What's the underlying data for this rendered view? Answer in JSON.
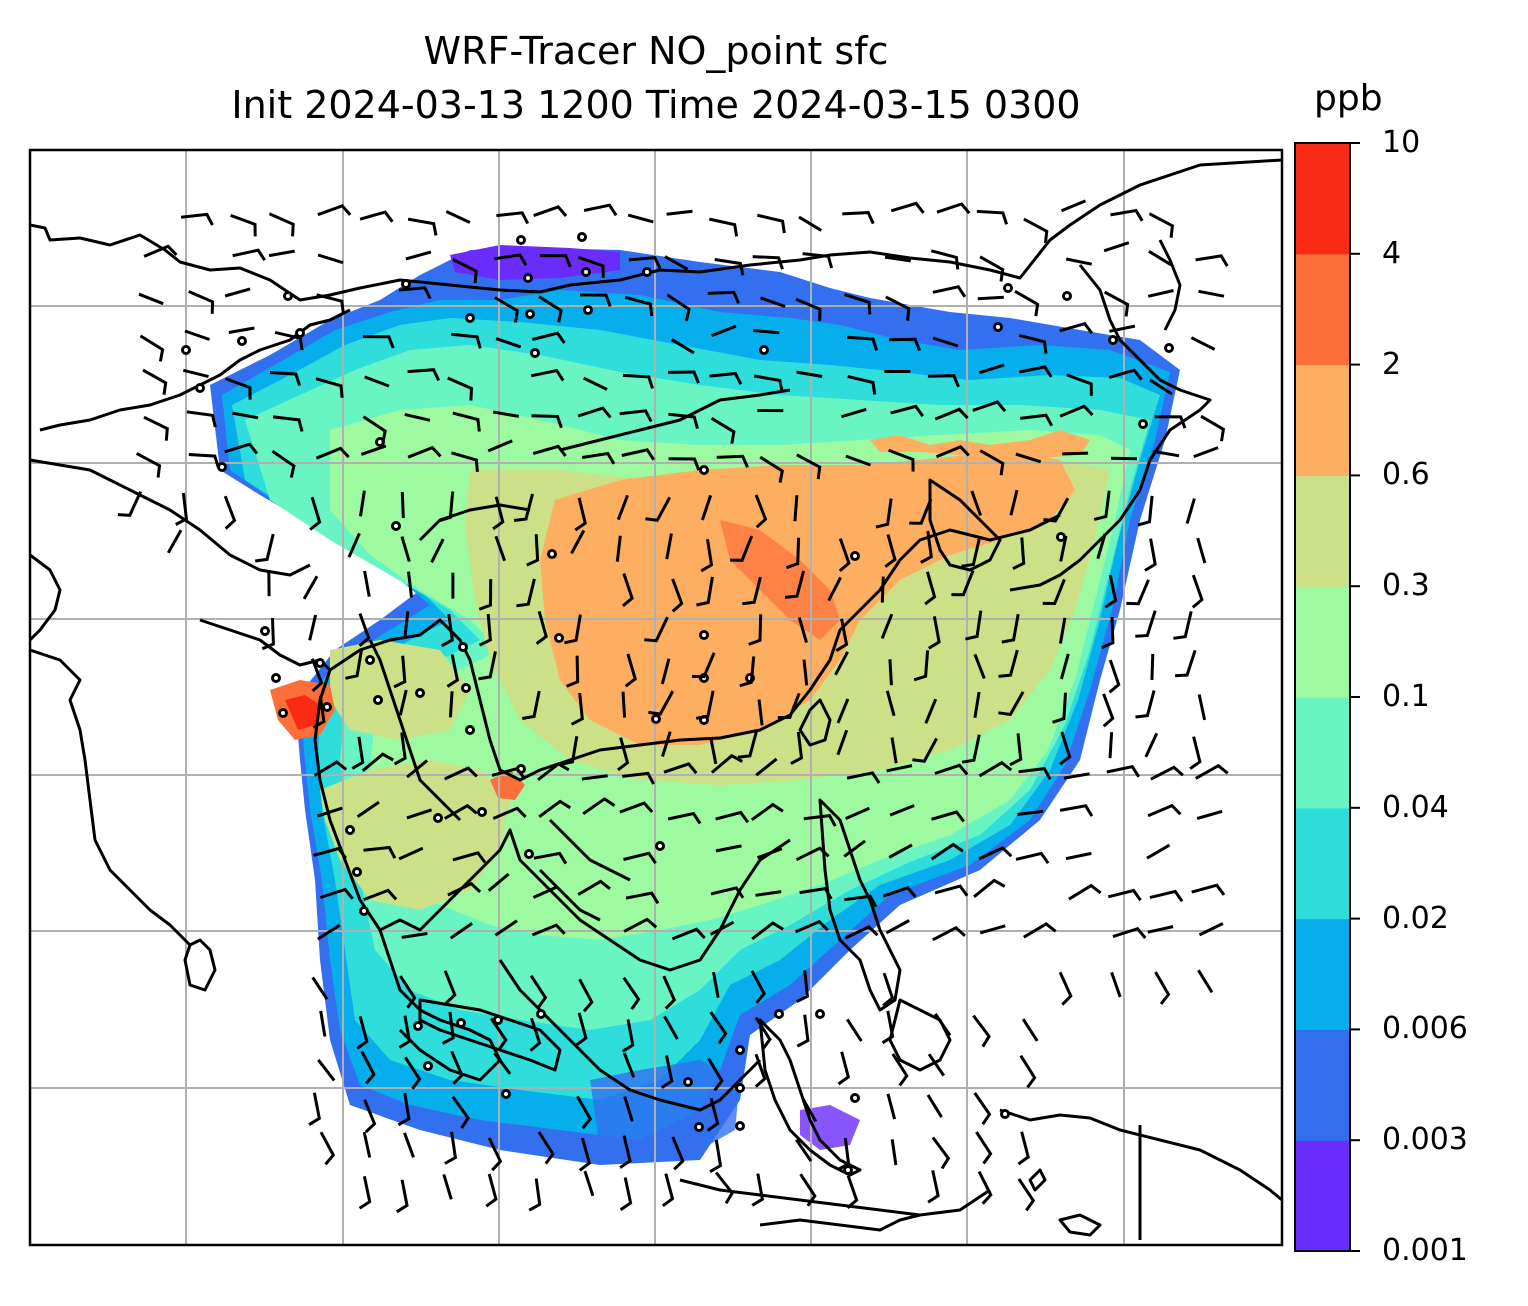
{
  "title": {
    "line1": "WRF-Tracer NO_point sfc",
    "line2": "Init 2024-03-13 1200 Time 2024-03-15 0300"
  },
  "colorbar": {
    "units": "ppb",
    "tick_labels": [
      "0.001",
      "0.003",
      "0.006",
      "0.02",
      "0.04",
      "0.1",
      "0.3",
      "0.6",
      "2",
      "4",
      "10"
    ],
    "colors": [
      "#6a2cfb",
      "#3370f0",
      "#07aeec",
      "#2fdedb",
      "#69f5c3",
      "#9dfaa0",
      "#cce087",
      "#fdae61",
      "#fd6f3a",
      "#fa2b14"
    ]
  },
  "map": {
    "field": "NO_point surface concentration with wind barbs",
    "gridlines": true,
    "coastline_color": "#000000",
    "station_marker": "open-circle"
  }
}
